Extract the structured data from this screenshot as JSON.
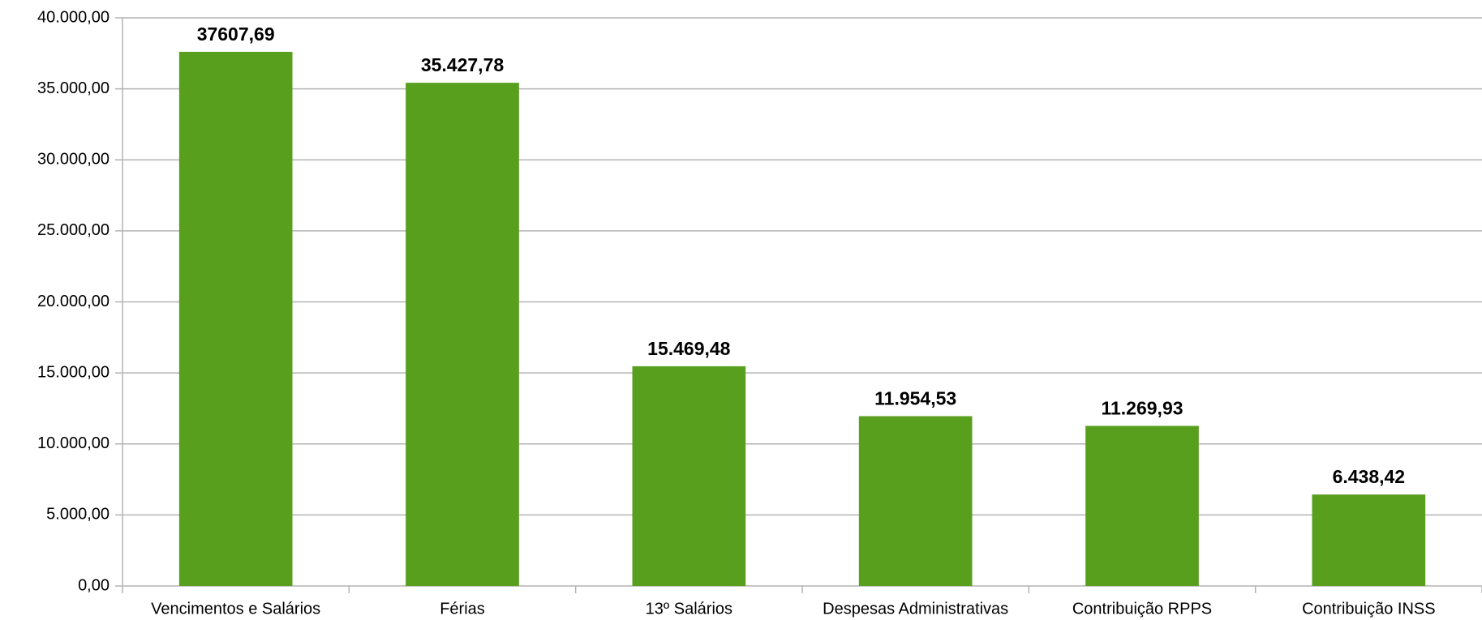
{
  "chart_data": {
    "type": "bar",
    "categories": [
      "Vencimentos e Salários",
      "Férias",
      "13º Salários",
      "Despesas Administrativas",
      "Contribuição RPPS",
      "Contribuição INSS"
    ],
    "values": [
      37607.69,
      35427.78,
      15469.48,
      11954.53,
      11269.93,
      6438.42
    ],
    "value_labels": [
      "37607,69",
      "35.427,78",
      "15.469,48",
      "11.954,53",
      "11.269,93",
      "6.438,42"
    ],
    "color": "#589f1e",
    "ylim": [
      0,
      40000
    ],
    "yticks": [
      {
        "value": 0,
        "label": "0,00"
      },
      {
        "value": 5000,
        "label": "5.000,00"
      },
      {
        "value": 10000,
        "label": "10.000,00"
      },
      {
        "value": 15000,
        "label": "15.000,00"
      },
      {
        "value": 20000,
        "label": "20.000,00"
      },
      {
        "value": 25000,
        "label": "25.000,00"
      },
      {
        "value": 30000,
        "label": "30.000,00"
      },
      {
        "value": 35000,
        "label": "35.000,00"
      },
      {
        "value": 40000,
        "label": "40.000,00"
      }
    ],
    "grid": true
  }
}
